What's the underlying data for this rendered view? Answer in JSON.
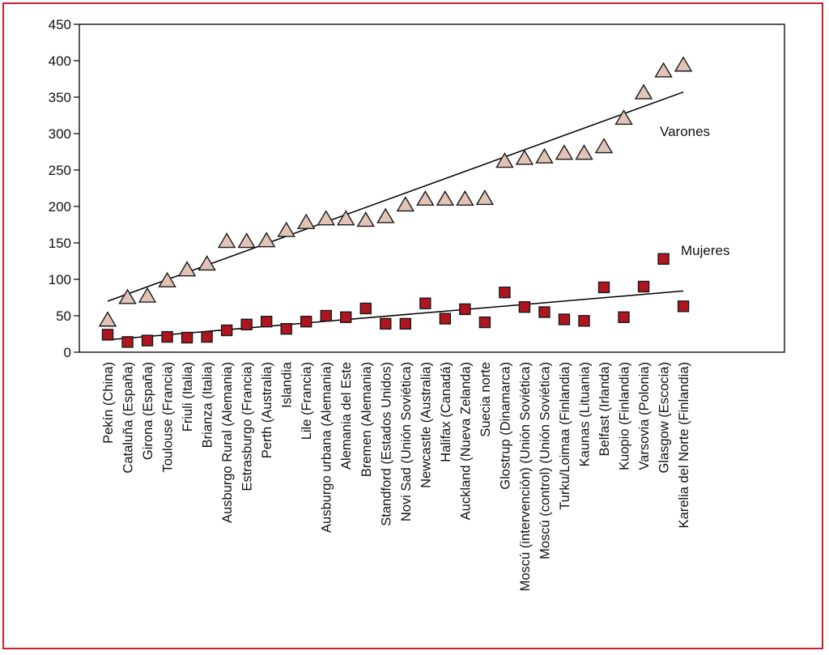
{
  "chart_data": {
    "type": "scatter",
    "title": "",
    "xlabel": "",
    "ylabel": "",
    "ylim": [
      0,
      450
    ],
    "yticks": [
      0,
      50,
      100,
      150,
      200,
      250,
      300,
      350,
      400,
      450
    ],
    "grid": false,
    "categories": [
      "Pekín (China)",
      "Cataluña (España)",
      "Girona (España)",
      "Toulouse (Francia)",
      "Friuli (Italia)",
      "Brianza (Italia)",
      "Ausburgo Rural (Alemania)",
      "Estrasburgo (Francia)",
      "Perth (Australia)",
      "Islandia",
      "Lile (Francia)",
      "Ausburgo urbana (Alemania)",
      "Alemania del Este",
      "Bremen (Alemania)",
      "Standford (Estados Unidos)",
      "Novi Sad (Unión Soviética)",
      "Newcastle (Australia)",
      "Halifax (Canadá)",
      "Auckland (Nueva Zelanda)",
      "Suecia norte",
      "Glostrup (Dinamarca)",
      "Moscú (intervención) (Unión Soviética)",
      "Moscú (control) (Unión Soviética)",
      "Turku/Loimaa (Finlandia)",
      "Kaunas (Lituania)",
      "Belfast (Irlanda)",
      "Kuopio (Finlandia)",
      "Varsovia (Polonia)",
      "Glasgow (Escocia)",
      "Karelia del Norte (Finlandia)"
    ],
    "series": [
      {
        "name": "Varones",
        "marker": "triangle",
        "color": "#e2c4b6",
        "values": [
          43,
          74,
          76,
          97,
          112,
          120,
          151,
          151,
          152,
          166,
          177,
          182,
          182,
          180,
          185,
          201,
          209,
          209,
          209,
          210,
          261,
          265,
          267,
          272,
          272,
          281,
          320,
          355,
          385,
          393
        ],
        "trend": [
          70,
          357
        ]
      },
      {
        "name": "Mujeres",
        "marker": "square",
        "color": "#b0141e",
        "values": [
          24,
          14,
          16,
          21,
          20,
          21,
          30,
          38,
          42,
          32,
          42,
          50,
          48,
          60,
          39,
          39,
          67,
          46,
          59,
          41,
          82,
          62,
          55,
          45,
          43,
          89,
          48,
          90,
          128,
          63
        ],
        "trend": [
          17,
          84
        ]
      }
    ]
  }
}
